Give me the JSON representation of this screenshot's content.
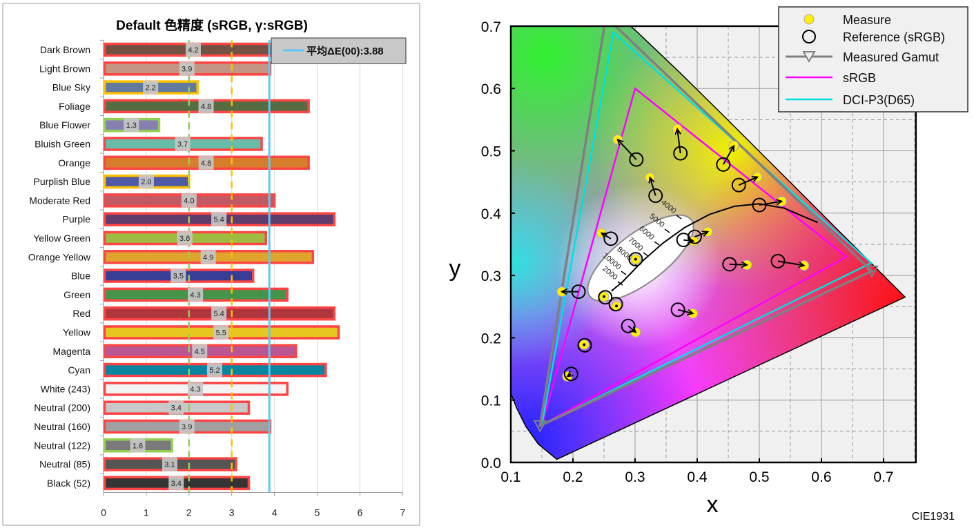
{
  "chart_data": [
    {
      "type": "bar",
      "orientation": "horizontal",
      "title": "Default 色精度 (sRGB, γ:sRGB)",
      "categories": [
        "Dark Brown",
        "Light Brown",
        "Blue Sky",
        "Foliage",
        "Blue Flower",
        "Bluish Green",
        "Orange",
        "Purplish Blue",
        "Moderate Red",
        "Purple",
        "Yellow Green",
        "Orange Yellow",
        "Blue",
        "Green",
        "Red",
        "Yellow",
        "Magenta",
        "Cyan",
        "White (243)",
        "Neutral (200)",
        "Neutral (160)",
        "Neutral (122)",
        "Neutral (85)",
        "Black (52)"
      ],
      "values": [
        4.2,
        3.9,
        2.2,
        4.8,
        1.3,
        3.7,
        4.8,
        2.0,
        4.0,
        5.4,
        3.8,
        4.9,
        3.5,
        4.3,
        5.4,
        5.5,
        4.5,
        5.2,
        4.3,
        3.4,
        3.9,
        1.6,
        3.1,
        3.4
      ],
      "data_labels": [
        "4.2",
        "3.9",
        "2.2",
        "4.8",
        "1.3",
        "3.7",
        "4.8",
        "2.0",
        "4.0",
        "5.4",
        "3.8",
        "4.9",
        "3.5",
        "4.3",
        "5.4",
        "5.5",
        "4.5",
        "5.2",
        "4.3",
        "3.4",
        "3.9",
        "1.6",
        "3.1",
        "3.4"
      ],
      "bar_colors": [
        "#735244",
        "#c29682",
        "#627a9d",
        "#576c43",
        "#8580b1",
        "#67bdaa",
        "#d67e2c",
        "#505ba6",
        "#c15a63",
        "#5e3c6c",
        "#9dbc40",
        "#e0a32e",
        "#383d96",
        "#469449",
        "#af363c",
        "#e7c71f",
        "#bb5695",
        "#0885a1",
        "#f3f3f3",
        "#c8c8c8",
        "#a0a0a0",
        "#7a7a7a",
        "#555555",
        "#343434"
      ],
      "threshold_border_colors": {
        "below_2": "#92d050",
        "2_to_3": "#ffc000",
        "above_3": "#ff4444"
      },
      "reference_lines": [
        {
          "value": 2,
          "style": "dashed",
          "color": "#92d050"
        },
        {
          "value": 3,
          "style": "dashed",
          "color": "#ffc000"
        },
        {
          "value": 3.88,
          "style": "solid",
          "color": "#5bc8f5",
          "label": "平均ΔE(00):3.88"
        }
      ],
      "xlim": [
        0,
        7
      ],
      "xticks": [
        "0",
        "1",
        "2",
        "3",
        "4",
        "5",
        "6",
        "7"
      ],
      "grid": true,
      "legend": "top-right"
    },
    {
      "type": "scatter",
      "title": "",
      "xlabel": "x",
      "ylabel": "y",
      "footer": "CIE1931",
      "xlim": [
        0.1,
        0.75
      ],
      "ylim": [
        0.0,
        0.7
      ],
      "xticks": [
        "0.1",
        "0.2",
        "0.3",
        "0.4",
        "0.5",
        "0.6",
        "0.7"
      ],
      "yticks": [
        "0.0",
        "0.1",
        "0.2",
        "0.3",
        "0.4",
        "0.5",
        "0.6",
        "0.7"
      ],
      "grid": true,
      "legend": "top-right",
      "legend_entries": [
        "Measure",
        "Reference (sRGB)",
        "Measured Gamut",
        "sRGB",
        "DCI-P3(D65)"
      ],
      "series": [
        {
          "name": "Measure",
          "color": "#ffee00",
          "points": [
            [
              0.272,
              0.518
            ],
            [
              0.368,
              0.535
            ],
            [
              0.459,
              0.508
            ],
            [
              0.497,
              0.458
            ],
            [
              0.536,
              0.419
            ],
            [
              0.324,
              0.457
            ],
            [
              0.246,
              0.368
            ],
            [
              0.417,
              0.37
            ],
            [
              0.394,
              0.355
            ],
            [
              0.301,
              0.326
            ],
            [
              0.48,
              0.317
            ],
            [
              0.572,
              0.316
            ],
            [
              0.182,
              0.274
            ],
            [
              0.25,
              0.266
            ],
            [
              0.27,
              0.251
            ],
            [
              0.393,
              0.239
            ],
            [
              0.301,
              0.209
            ],
            [
              0.218,
              0.189
            ],
            [
              0.191,
              0.138
            ]
          ]
        },
        {
          "name": "Reference (sRGB)",
          "color": "#000000",
          "points": [
            [
              0.302,
              0.486
            ],
            [
              0.373,
              0.496
            ],
            [
              0.442,
              0.478
            ],
            [
              0.467,
              0.445
            ],
            [
              0.5,
              0.413
            ],
            [
              0.333,
              0.428
            ],
            [
              0.261,
              0.359
            ],
            [
              0.396,
              0.362
            ],
            [
              0.378,
              0.357
            ],
            [
              0.301,
              0.326
            ],
            [
              0.452,
              0.318
            ],
            [
              0.53,
              0.323
            ],
            [
              0.209,
              0.274
            ],
            [
              0.252,
              0.265
            ],
            [
              0.269,
              0.254
            ],
            [
              0.369,
              0.245
            ],
            [
              0.289,
              0.219
            ],
            [
              0.219,
              0.188
            ],
            [
              0.197,
              0.142
            ]
          ]
        },
        {
          "name": "Measured Gamut",
          "color": "#808080",
          "points": [
            [
              0.681,
              0.307
            ],
            [
              0.253,
              0.715
            ],
            [
              0.147,
              0.059
            ]
          ]
        },
        {
          "name": "sRGB",
          "color": "#ff00ff",
          "points": [
            [
              0.64,
              0.33
            ],
            [
              0.3,
              0.6
            ],
            [
              0.15,
              0.06
            ]
          ]
        },
        {
          "name": "DCI-P3(D65)",
          "color": "#00e0e0",
          "points": [
            [
              0.68,
              0.32
            ],
            [
              0.265,
              0.69
            ],
            [
              0.15,
              0.06
            ]
          ]
        }
      ],
      "cct_labels": [
        "4000",
        "5000",
        "6000",
        "7000",
        "8000",
        "10000",
        "2000"
      ]
    }
  ]
}
